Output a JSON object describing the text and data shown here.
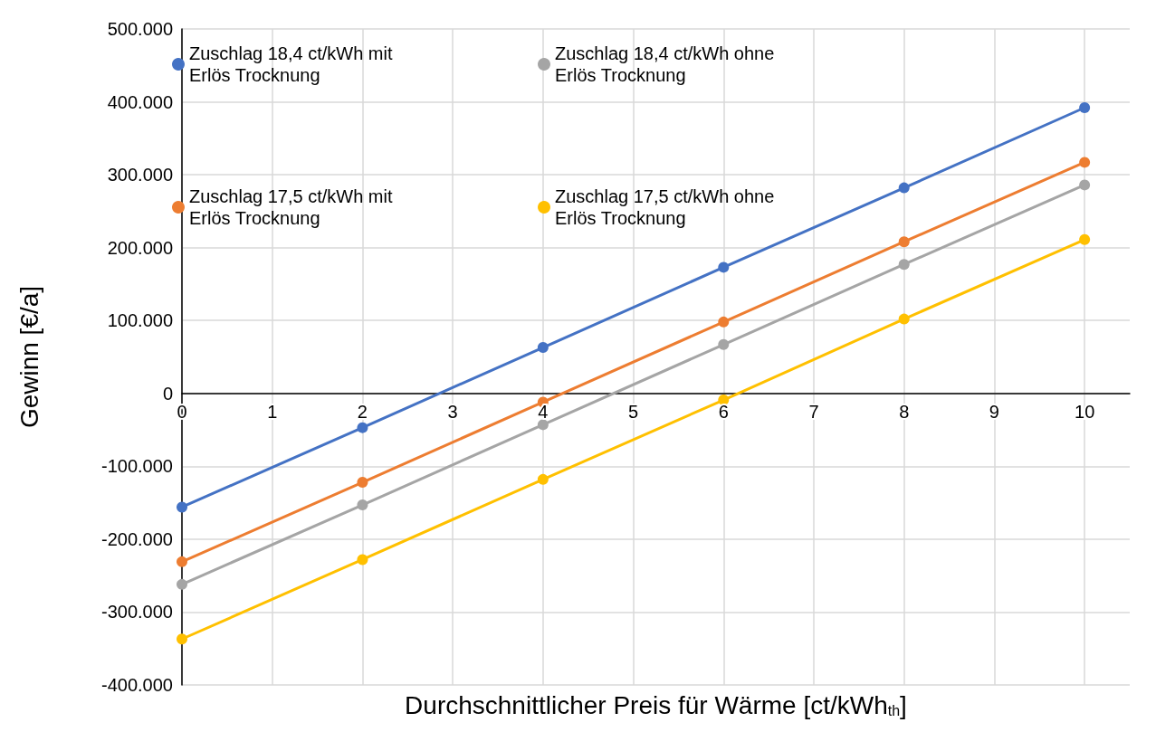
{
  "chart_data": {
    "type": "line",
    "xlabel": "Durchschnittlicher Preis für Wärme [ct/kWh$_{th}$]",
    "ylabel": "Gewinn [€/a]",
    "x": [
      0,
      2,
      4,
      6,
      8,
      10
    ],
    "series": [
      {
        "name": "Zuschlag 18,4 ct/kWh mit Erlös Trocknung",
        "color": "#4472c4",
        "values": [
          -156000,
          -47000,
          63000,
          173000,
          282000,
          392000
        ]
      },
      {
        "name": "Zuschlag 18,4 ct/kWh ohne Erlös Trocknung",
        "color": "#a5a5a5",
        "values": [
          -262000,
          -153000,
          -43000,
          67000,
          177000,
          286000
        ]
      },
      {
        "name": "Zuschlag 17,5 ct/kWh mit Erlös Trocknung",
        "color": "#ed7d31",
        "values": [
          -231000,
          -122000,
          -12000,
          98000,
          208000,
          317000
        ]
      },
      {
        "name": "Zuschlag 17,5 ct/kWh ohne Erlös Trocknung",
        "color": "#ffc000",
        "values": [
          -337000,
          -228000,
          -118000,
          -9000,
          102000,
          211000
        ]
      }
    ],
    "xlim": [
      0,
      10.5
    ],
    "xticks": [
      0,
      1,
      2,
      3,
      4,
      5,
      6,
      7,
      8,
      9,
      10
    ],
    "ylim": [
      -400000,
      500000
    ],
    "yticks": [
      {
        "value": -400000,
        "label": "-400.000"
      },
      {
        "value": -300000,
        "label": "-300.000"
      },
      {
        "value": -200000,
        "label": "-200.000"
      },
      {
        "value": -100000,
        "label": "-100.000"
      },
      {
        "value": 0,
        "label": "0"
      },
      {
        "value": 100000,
        "label": "100.000"
      },
      {
        "value": 200000,
        "label": "200.000"
      },
      {
        "value": 300000,
        "label": "300.000"
      },
      {
        "value": 400000,
        "label": "400.000"
      },
      {
        "value": 500000,
        "label": "500.000"
      }
    ],
    "grid": true,
    "legend": "top left",
    "marker": "circle",
    "line_style": "solid"
  }
}
